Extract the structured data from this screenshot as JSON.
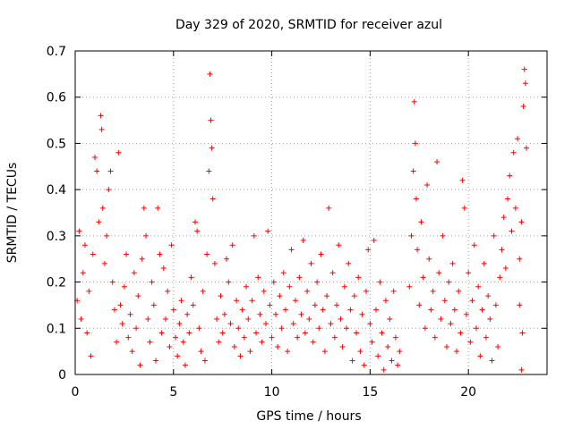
{
  "chart_data": {
    "type": "scatter",
    "title": "Day 329 of 2020, SRMTID for receiver azul",
    "xlabel": "GPS time / hours",
    "ylabel": "SRMTID / TECUs",
    "xlim": [
      0,
      24
    ],
    "ylim": [
      0,
      0.7
    ],
    "xticks": [
      "0",
      "5",
      "10",
      "15",
      "20"
    ],
    "yticks": [
      "0",
      "0.1",
      "0.2",
      "0.3",
      "0.4",
      "0.5",
      "0.6",
      "0.7"
    ],
    "grid": true,
    "marker": "+",
    "color": "#ff0000",
    "series": [
      {
        "name": "SRMTID",
        "points": [
          [
            0.1,
            0.16
          ],
          [
            0.2,
            0.31
          ],
          [
            0.3,
            0.12
          ],
          [
            0.4,
            0.22
          ],
          [
            0.5,
            0.28
          ],
          [
            0.6,
            0.09
          ],
          [
            0.7,
            0.18
          ],
          [
            0.8,
            0.04
          ],
          [
            0.9,
            0.26
          ],
          [
            1.0,
            0.47
          ],
          [
            1.1,
            0.44
          ],
          [
            1.2,
            0.33
          ],
          [
            1.3,
            0.56
          ],
          [
            1.35,
            0.53
          ],
          [
            1.4,
            0.36
          ],
          [
            1.5,
            0.24
          ],
          [
            1.6,
            0.3
          ],
          [
            1.7,
            0.4
          ],
          [
            1.8,
            0.44
          ],
          [
            1.9,
            0.2
          ],
          [
            2.0,
            0.14
          ],
          [
            2.1,
            0.07
          ],
          [
            2.2,
            0.48
          ],
          [
            2.3,
            0.15
          ],
          [
            2.4,
            0.11
          ],
          [
            2.5,
            0.19
          ],
          [
            2.6,
            0.26
          ],
          [
            2.7,
            0.08
          ],
          [
            2.8,
            0.13
          ],
          [
            2.9,
            0.05
          ],
          [
            3.0,
            0.22
          ],
          [
            3.1,
            0.1
          ],
          [
            3.2,
            0.17
          ],
          [
            3.3,
            0.02
          ],
          [
            3.4,
            0.25
          ],
          [
            3.5,
            0.36
          ],
          [
            3.6,
            0.3
          ],
          [
            3.7,
            0.12
          ],
          [
            3.8,
            0.07
          ],
          [
            3.9,
            0.2
          ],
          [
            4.0,
            0.15
          ],
          [
            4.1,
            0.03
          ],
          [
            4.2,
            0.36
          ],
          [
            4.3,
            0.26
          ],
          [
            4.4,
            0.09
          ],
          [
            4.5,
            0.23
          ],
          [
            4.6,
            0.12
          ],
          [
            4.7,
            0.18
          ],
          [
            4.8,
            0.06
          ],
          [
            4.9,
            0.28
          ],
          [
            5.0,
            0.14
          ],
          [
            5.1,
            0.08
          ],
          [
            5.2,
            0.04
          ],
          [
            5.3,
            0.11
          ],
          [
            5.4,
            0.16
          ],
          [
            5.5,
            0.07
          ],
          [
            5.6,
            0.02
          ],
          [
            5.7,
            0.13
          ],
          [
            5.8,
            0.09
          ],
          [
            5.9,
            0.21
          ],
          [
            6.0,
            0.15
          ],
          [
            6.1,
            0.33
          ],
          [
            6.2,
            0.31
          ],
          [
            6.3,
            0.1
          ],
          [
            6.4,
            0.05
          ],
          [
            6.5,
            0.18
          ],
          [
            6.6,
            0.03
          ],
          [
            6.7,
            0.26
          ],
          [
            6.8,
            0.44
          ],
          [
            6.85,
            0.65
          ],
          [
            6.9,
            0.55
          ],
          [
            6.95,
            0.49
          ],
          [
            7.0,
            0.38
          ],
          [
            7.1,
            0.24
          ],
          [
            7.2,
            0.12
          ],
          [
            7.3,
            0.07
          ],
          [
            7.4,
            0.17
          ],
          [
            7.5,
            0.09
          ],
          [
            7.6,
            0.13
          ],
          [
            7.7,
            0.25
          ],
          [
            7.8,
            0.2
          ],
          [
            7.9,
            0.11
          ],
          [
            8.0,
            0.28
          ],
          [
            8.1,
            0.06
          ],
          [
            8.2,
            0.16
          ],
          [
            8.3,
            0.1
          ],
          [
            8.4,
            0.04
          ],
          [
            8.5,
            0.14
          ],
          [
            8.6,
            0.08
          ],
          [
            8.7,
            0.19
          ],
          [
            8.8,
            0.12
          ],
          [
            8.9,
            0.05
          ],
          [
            9.0,
            0.16
          ],
          [
            9.1,
            0.3
          ],
          [
            9.2,
            0.09
          ],
          [
            9.3,
            0.21
          ],
          [
            9.4,
            0.13
          ],
          [
            9.5,
            0.07
          ],
          [
            9.6,
            0.18
          ],
          [
            9.7,
            0.11
          ],
          [
            9.8,
            0.31
          ],
          [
            9.9,
            0.15
          ],
          [
            10.0,
            0.08
          ],
          [
            10.1,
            0.2
          ],
          [
            10.2,
            0.13
          ],
          [
            10.3,
            0.06
          ],
          [
            10.4,
            0.17
          ],
          [
            10.5,
            0.1
          ],
          [
            10.6,
            0.22
          ],
          [
            10.7,
            0.14
          ],
          [
            10.8,
            0.05
          ],
          [
            10.9,
            0.19
          ],
          [
            11.0,
            0.27
          ],
          [
            11.1,
            0.11
          ],
          [
            11.2,
            0.16
          ],
          [
            11.3,
            0.08
          ],
          [
            11.4,
            0.21
          ],
          [
            11.5,
            0.13
          ],
          [
            11.6,
            0.29
          ],
          [
            11.7,
            0.09
          ],
          [
            11.8,
            0.18
          ],
          [
            11.9,
            0.12
          ],
          [
            12.0,
            0.24
          ],
          [
            12.1,
            0.07
          ],
          [
            12.2,
            0.15
          ],
          [
            12.3,
            0.2
          ],
          [
            12.4,
            0.1
          ],
          [
            12.5,
            0.26
          ],
          [
            12.6,
            0.14
          ],
          [
            12.7,
            0.05
          ],
          [
            12.8,
            0.17
          ],
          [
            12.9,
            0.36
          ],
          [
            13.0,
            0.11
          ],
          [
            13.1,
            0.22
          ],
          [
            13.2,
            0.08
          ],
          [
            13.3,
            0.15
          ],
          [
            13.4,
            0.28
          ],
          [
            13.5,
            0.12
          ],
          [
            13.6,
            0.06
          ],
          [
            13.7,
            0.19
          ],
          [
            13.8,
            0.1
          ],
          [
            13.9,
            0.24
          ],
          [
            14.0,
            0.14
          ],
          [
            14.1,
            0.03
          ],
          [
            14.2,
            0.17
          ],
          [
            14.3,
            0.09
          ],
          [
            14.4,
            0.21
          ],
          [
            14.5,
            0.05
          ],
          [
            14.6,
            0.13
          ],
          [
            14.7,
            0.02
          ],
          [
            14.8,
            0.18
          ],
          [
            14.9,
            0.27
          ],
          [
            15.0,
            0.11
          ],
          [
            15.1,
            0.07
          ],
          [
            15.2,
            0.29
          ],
          [
            15.3,
            0.14
          ],
          [
            15.4,
            0.04
          ],
          [
            15.5,
            0.2
          ],
          [
            15.6,
            0.09
          ],
          [
            15.7,
            0.01
          ],
          [
            15.8,
            0.16
          ],
          [
            15.9,
            0.06
          ],
          [
            16.0,
            0.12
          ],
          [
            16.1,
            0.03
          ],
          [
            16.2,
            0.18
          ],
          [
            16.3,
            0.08
          ],
          [
            16.4,
            0.02
          ],
          [
            16.5,
            0.05
          ],
          [
            17.0,
            0.19
          ],
          [
            17.1,
            0.3
          ],
          [
            17.2,
            0.44
          ],
          [
            17.25,
            0.59
          ],
          [
            17.3,
            0.5
          ],
          [
            17.35,
            0.38
          ],
          [
            17.4,
            0.27
          ],
          [
            17.5,
            0.15
          ],
          [
            17.6,
            0.33
          ],
          [
            17.7,
            0.21
          ],
          [
            17.8,
            0.1
          ],
          [
            17.9,
            0.41
          ],
          [
            18.0,
            0.25
          ],
          [
            18.1,
            0.14
          ],
          [
            18.2,
            0.18
          ],
          [
            18.3,
            0.08
          ],
          [
            18.4,
            0.46
          ],
          [
            18.5,
            0.22
          ],
          [
            18.6,
            0.12
          ],
          [
            18.7,
            0.3
          ],
          [
            18.8,
            0.16
          ],
          [
            18.9,
            0.06
          ],
          [
            19.0,
            0.2
          ],
          [
            19.1,
            0.11
          ],
          [
            19.2,
            0.24
          ],
          [
            19.3,
            0.14
          ],
          [
            19.4,
            0.05
          ],
          [
            19.5,
            0.18
          ],
          [
            19.6,
            0.09
          ],
          [
            19.7,
            0.42
          ],
          [
            19.8,
            0.36
          ],
          [
            19.9,
            0.13
          ],
          [
            20.0,
            0.22
          ],
          [
            20.1,
            0.07
          ],
          [
            20.2,
            0.16
          ],
          [
            20.3,
            0.28
          ],
          [
            20.4,
            0.1
          ],
          [
            20.5,
            0.19
          ],
          [
            20.6,
            0.04
          ],
          [
            20.7,
            0.14
          ],
          [
            20.8,
            0.24
          ],
          [
            20.9,
            0.08
          ],
          [
            21.0,
            0.17
          ],
          [
            21.1,
            0.12
          ],
          [
            21.2,
            0.03
          ],
          [
            21.3,
            0.3
          ],
          [
            21.4,
            0.15
          ],
          [
            21.5,
            0.06
          ],
          [
            21.6,
            0.21
          ],
          [
            21.7,
            0.27
          ],
          [
            21.8,
            0.34
          ],
          [
            21.9,
            0.23
          ],
          [
            22.0,
            0.38
          ],
          [
            22.1,
            0.43
          ],
          [
            22.2,
            0.31
          ],
          [
            22.3,
            0.48
          ],
          [
            22.4,
            0.36
          ],
          [
            22.5,
            0.51
          ],
          [
            22.6,
            0.25
          ],
          [
            22.7,
            0.33
          ],
          [
            22.75,
            0.09
          ],
          [
            22.8,
            0.58
          ],
          [
            22.85,
            0.66
          ],
          [
            22.9,
            0.63
          ],
          [
            22.95,
            0.49
          ],
          [
            22.7,
            0.01
          ],
          [
            22.6,
            0.15
          ]
        ]
      }
    ]
  }
}
